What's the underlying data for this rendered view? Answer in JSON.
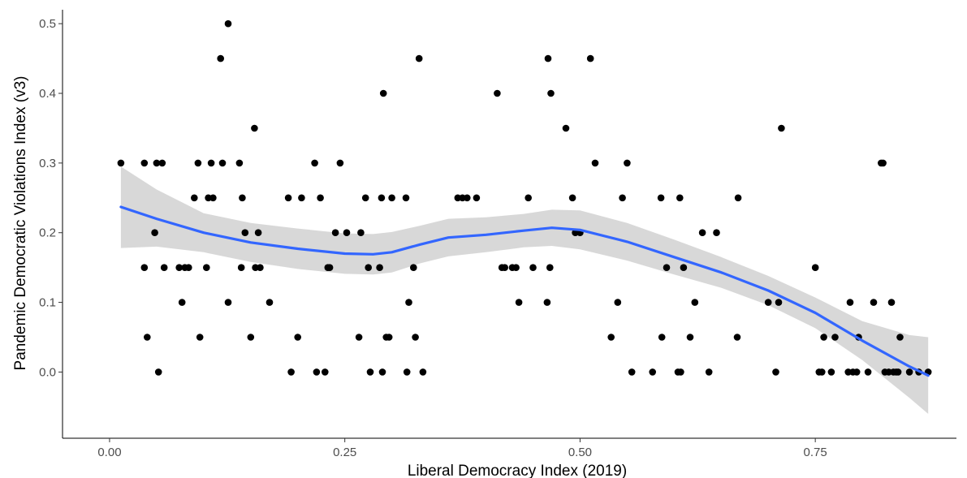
{
  "chart_data": {
    "type": "scatter",
    "title": "",
    "xlabel": "Liberal Democracy Index (2019)",
    "ylabel": "Pandemic Democratic Violations Index (v3)",
    "xlim": [
      -0.05,
      0.9
    ],
    "ylim": [
      -0.095,
      0.52
    ],
    "x_ticks": [
      0.0,
      0.25,
      0.5,
      0.75
    ],
    "x_tick_labels": [
      "0.00",
      "0.25",
      "0.50",
      "0.75"
    ],
    "y_ticks": [
      0.0,
      0.1,
      0.2,
      0.3,
      0.4,
      0.5
    ],
    "y_tick_labels": [
      "0.0",
      "0.1",
      "0.2",
      "0.3",
      "0.4",
      "0.5"
    ],
    "grid": false,
    "colors": {
      "points": "#000000",
      "smooth_line": "#3366FF",
      "ribbon": "#BEBEBE"
    },
    "points": [
      [
        0.012,
        0.3
      ],
      [
        0.037,
        0.3
      ],
      [
        0.037,
        0.15
      ],
      [
        0.04,
        0.05
      ],
      [
        0.048,
        0.2
      ],
      [
        0.05,
        0.3
      ],
      [
        0.052,
        0.0
      ],
      [
        0.056,
        0.3
      ],
      [
        0.058,
        0.15
      ],
      [
        0.074,
        0.15
      ],
      [
        0.077,
        0.1
      ],
      [
        0.08,
        0.15
      ],
      [
        0.084,
        0.15
      ],
      [
        0.09,
        0.25
      ],
      [
        0.094,
        0.3
      ],
      [
        0.096,
        0.05
      ],
      [
        0.103,
        0.15
      ],
      [
        0.105,
        0.25
      ],
      [
        0.108,
        0.3
      ],
      [
        0.11,
        0.25
      ],
      [
        0.118,
        0.45
      ],
      [
        0.12,
        0.3
      ],
      [
        0.126,
        0.5
      ],
      [
        0.126,
        0.1
      ],
      [
        0.138,
        0.3
      ],
      [
        0.14,
        0.15
      ],
      [
        0.141,
        0.25
      ],
      [
        0.144,
        0.2
      ],
      [
        0.15,
        0.05
      ],
      [
        0.154,
        0.35
      ],
      [
        0.155,
        0.15
      ],
      [
        0.158,
        0.2
      ],
      [
        0.16,
        0.15
      ],
      [
        0.17,
        0.1
      ],
      [
        0.19,
        0.25
      ],
      [
        0.193,
        0.0
      ],
      [
        0.2,
        0.05
      ],
      [
        0.204,
        0.25
      ],
      [
        0.218,
        0.3
      ],
      [
        0.22,
        0.0
      ],
      [
        0.224,
        0.25
      ],
      [
        0.229,
        0.0
      ],
      [
        0.232,
        0.15
      ],
      [
        0.234,
        0.15
      ],
      [
        0.24,
        0.2
      ],
      [
        0.245,
        0.3
      ],
      [
        0.252,
        0.2
      ],
      [
        0.265,
        0.05
      ],
      [
        0.267,
        0.2
      ],
      [
        0.272,
        0.25
      ],
      [
        0.275,
        0.15
      ],
      [
        0.277,
        0.0
      ],
      [
        0.287,
        0.15
      ],
      [
        0.289,
        0.25
      ],
      [
        0.29,
        0.0
      ],
      [
        0.291,
        0.4
      ],
      [
        0.294,
        0.05
      ],
      [
        0.297,
        0.05
      ],
      [
        0.3,
        0.25
      ],
      [
        0.315,
        0.25
      ],
      [
        0.316,
        0.0
      ],
      [
        0.318,
        0.1
      ],
      [
        0.323,
        0.15
      ],
      [
        0.325,
        0.05
      ],
      [
        0.329,
        0.45
      ],
      [
        0.333,
        0.0
      ],
      [
        0.37,
        0.25
      ],
      [
        0.375,
        0.25
      ],
      [
        0.38,
        0.25
      ],
      [
        0.39,
        0.25
      ],
      [
        0.412,
        0.4
      ],
      [
        0.417,
        0.15
      ],
      [
        0.42,
        0.15
      ],
      [
        0.428,
        0.15
      ],
      [
        0.432,
        0.15
      ],
      [
        0.435,
        0.1
      ],
      [
        0.445,
        0.25
      ],
      [
        0.45,
        0.15
      ],
      [
        0.465,
        0.1
      ],
      [
        0.466,
        0.45
      ],
      [
        0.468,
        0.15
      ],
      [
        0.469,
        0.4
      ],
      [
        0.485,
        0.35
      ],
      [
        0.492,
        0.25
      ],
      [
        0.495,
        0.2
      ],
      [
        0.5,
        0.2
      ],
      [
        0.511,
        0.45
      ],
      [
        0.516,
        0.3
      ],
      [
        0.533,
        0.05
      ],
      [
        0.54,
        0.1
      ],
      [
        0.545,
        0.25
      ],
      [
        0.55,
        0.3
      ],
      [
        0.555,
        0.0
      ],
      [
        0.577,
        0.0
      ],
      [
        0.586,
        0.25
      ],
      [
        0.587,
        0.05
      ],
      [
        0.592,
        0.15
      ],
      [
        0.604,
        0.0
      ],
      [
        0.606,
        0.25
      ],
      [
        0.607,
        0.0
      ],
      [
        0.61,
        0.15
      ],
      [
        0.617,
        0.05
      ],
      [
        0.622,
        0.1
      ],
      [
        0.63,
        0.2
      ],
      [
        0.637,
        0.0
      ],
      [
        0.645,
        0.2
      ],
      [
        0.667,
        0.05
      ],
      [
        0.668,
        0.25
      ],
      [
        0.7,
        0.1
      ],
      [
        0.708,
        0.0
      ],
      [
        0.711,
        0.1
      ],
      [
        0.714,
        0.35
      ],
      [
        0.75,
        0.15
      ],
      [
        0.754,
        0.0
      ],
      [
        0.757,
        0.0
      ],
      [
        0.759,
        0.05
      ],
      [
        0.767,
        0.0
      ],
      [
        0.771,
        0.05
      ],
      [
        0.785,
        0.0
      ],
      [
        0.787,
        0.1
      ],
      [
        0.79,
        0.0
      ],
      [
        0.794,
        0.0
      ],
      [
        0.796,
        0.05
      ],
      [
        0.806,
        0.0
      ],
      [
        0.812,
        0.1
      ],
      [
        0.82,
        0.3
      ],
      [
        0.822,
        0.3
      ],
      [
        0.824,
        0.0
      ],
      [
        0.828,
        0.0
      ],
      [
        0.831,
        0.1
      ],
      [
        0.833,
        0.0
      ],
      [
        0.836,
        0.0
      ],
      [
        0.838,
        0.0
      ],
      [
        0.84,
        0.05
      ],
      [
        0.85,
        0.0
      ],
      [
        0.86,
        0.0
      ],
      [
        0.87,
        0.0
      ]
    ],
    "smooth_line": {
      "x": [
        0.012,
        0.05,
        0.1,
        0.15,
        0.2,
        0.25,
        0.28,
        0.3,
        0.33,
        0.36,
        0.4,
        0.44,
        0.47,
        0.5,
        0.55,
        0.6,
        0.65,
        0.7,
        0.75,
        0.8,
        0.85,
        0.87
      ],
      "y": [
        0.237,
        0.22,
        0.2,
        0.186,
        0.177,
        0.17,
        0.169,
        0.172,
        0.183,
        0.193,
        0.197,
        0.203,
        0.207,
        0.204,
        0.187,
        0.165,
        0.143,
        0.117,
        0.085,
        0.045,
        0.008,
        -0.005
      ],
      "lower": [
        0.178,
        0.18,
        0.172,
        0.158,
        0.148,
        0.141,
        0.14,
        0.143,
        0.156,
        0.166,
        0.172,
        0.179,
        0.181,
        0.176,
        0.16,
        0.14,
        0.121,
        0.096,
        0.063,
        0.017,
        -0.037,
        -0.06
      ],
      "upper": [
        0.295,
        0.262,
        0.228,
        0.214,
        0.206,
        0.199,
        0.198,
        0.201,
        0.21,
        0.22,
        0.222,
        0.227,
        0.233,
        0.232,
        0.214,
        0.19,
        0.165,
        0.138,
        0.107,
        0.073,
        0.053,
        0.05
      ]
    }
  }
}
